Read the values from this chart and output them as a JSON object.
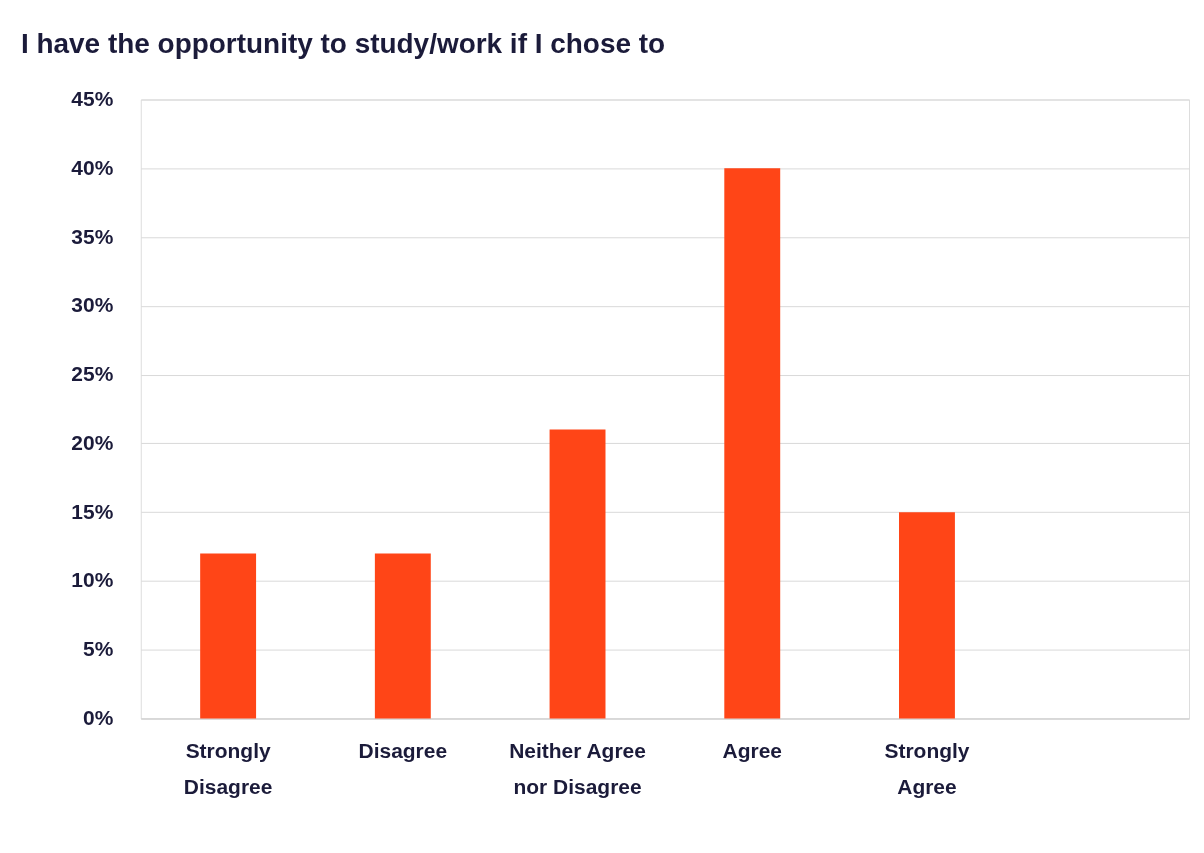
{
  "chart_data": {
    "type": "bar",
    "title": "I have the opportunity to study/work if I chose to",
    "categories": [
      "Strongly Disagree",
      "Disagree",
      "Neither Agree nor Disagree",
      "Agree",
      "Strongly Agree",
      null
    ],
    "values": [
      12,
      12,
      21,
      40,
      15,
      null
    ],
    "color": "#ff4517",
    "ylim": [
      0,
      45
    ],
    "yticks": [
      {
        "value": 0,
        "label": "0%"
      },
      {
        "value": 5,
        "label": "5%"
      },
      {
        "value": 10,
        "label": "10%"
      },
      {
        "value": 15,
        "label": "15%"
      },
      {
        "value": 20,
        "label": "20%"
      },
      {
        "value": 25,
        "label": "25%"
      },
      {
        "value": 30,
        "label": "30%"
      },
      {
        "value": 35,
        "label": "35%"
      },
      {
        "value": 40,
        "label": "40%"
      },
      {
        "value": 45,
        "label": "45%"
      }
    ],
    "grid": "y"
  }
}
